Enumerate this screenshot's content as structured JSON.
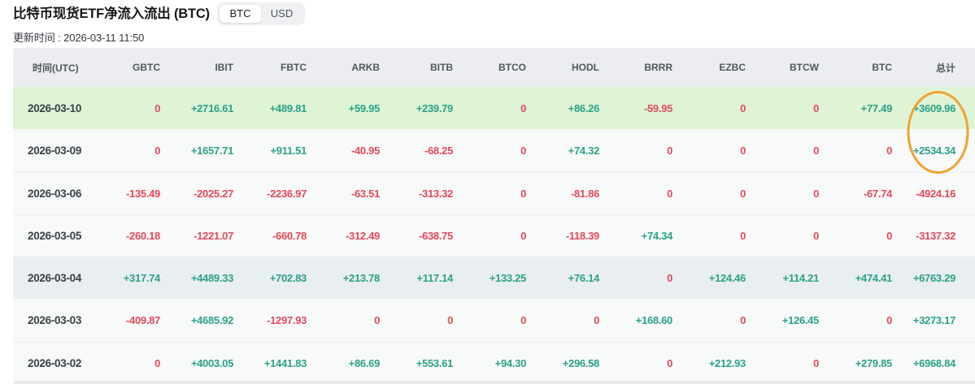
{
  "header": {
    "title": "比特币现货ETF净流入流出 (BTC)",
    "toggle": {
      "options": [
        "BTC",
        "USD"
      ],
      "active": "BTC"
    },
    "update_time": "更新时间 : 2026-03-11 11:50"
  },
  "colors": {
    "positive": "#2ba188",
    "negative": "#e2495b",
    "highlight_green": "#def4d5",
    "highlight_gray": "#e9eef1",
    "annotation_orange": "#f0a232"
  },
  "table": {
    "columns": [
      "时间(UTC)",
      "GBTC",
      "IBIT",
      "FBTC",
      "ARKB",
      "BITB",
      "BTCO",
      "HODL",
      "BRRR",
      "EZBC",
      "BTCW",
      "BTC",
      "总计"
    ],
    "rows": [
      {
        "date": "2026-03-10",
        "highlight": "green",
        "values": [
          "0",
          "+2716.61",
          "+489.81",
          "+59.95",
          "+239.79",
          "0",
          "+86.26",
          "-59.95",
          "0",
          "0",
          "+77.49",
          "+3609.96"
        ]
      },
      {
        "date": "2026-03-09",
        "highlight": null,
        "values": [
          "0",
          "+1657.71",
          "+911.51",
          "-40.95",
          "-68.25",
          "0",
          "+74.32",
          "0",
          "0",
          "0",
          "0",
          "+2534.34"
        ]
      },
      {
        "date": "2026-03-06",
        "highlight": null,
        "values": [
          "-135.49",
          "-2025.27",
          "-2236.97",
          "-63.51",
          "-313.32",
          "0",
          "-81.86",
          "0",
          "0",
          "0",
          "-67.74",
          "-4924.16"
        ]
      },
      {
        "date": "2026-03-05",
        "highlight": null,
        "values": [
          "-260.18",
          "-1221.07",
          "-660.78",
          "-312.49",
          "-638.75",
          "0",
          "-118.39",
          "+74.34",
          "0",
          "0",
          "0",
          "-3137.32"
        ]
      },
      {
        "date": "2026-03-04",
        "highlight": "gray",
        "values": [
          "+317.74",
          "+4489.33",
          "+702.83",
          "+213.78",
          "+117.14",
          "+133.25",
          "+76.14",
          "0",
          "+124.46",
          "+114.21",
          "+474.41",
          "+6763.29"
        ]
      },
      {
        "date": "2026-03-03",
        "highlight": null,
        "values": [
          "-409.87",
          "+4685.92",
          "-1297.93",
          "0",
          "0",
          "0",
          "0",
          "+168.60",
          "0",
          "+126.45",
          "0",
          "+3273.17"
        ]
      },
      {
        "date": "2026-03-02",
        "highlight": null,
        "values": [
          "0",
          "+4003.05",
          "+1441.83",
          "+86.69",
          "+553.61",
          "+94.30",
          "+296.58",
          "0",
          "+212.93",
          "0",
          "+279.85",
          "+6968.84"
        ]
      }
    ]
  },
  "annotation": {
    "shape": "ellipse",
    "color": "#f0a232"
  }
}
